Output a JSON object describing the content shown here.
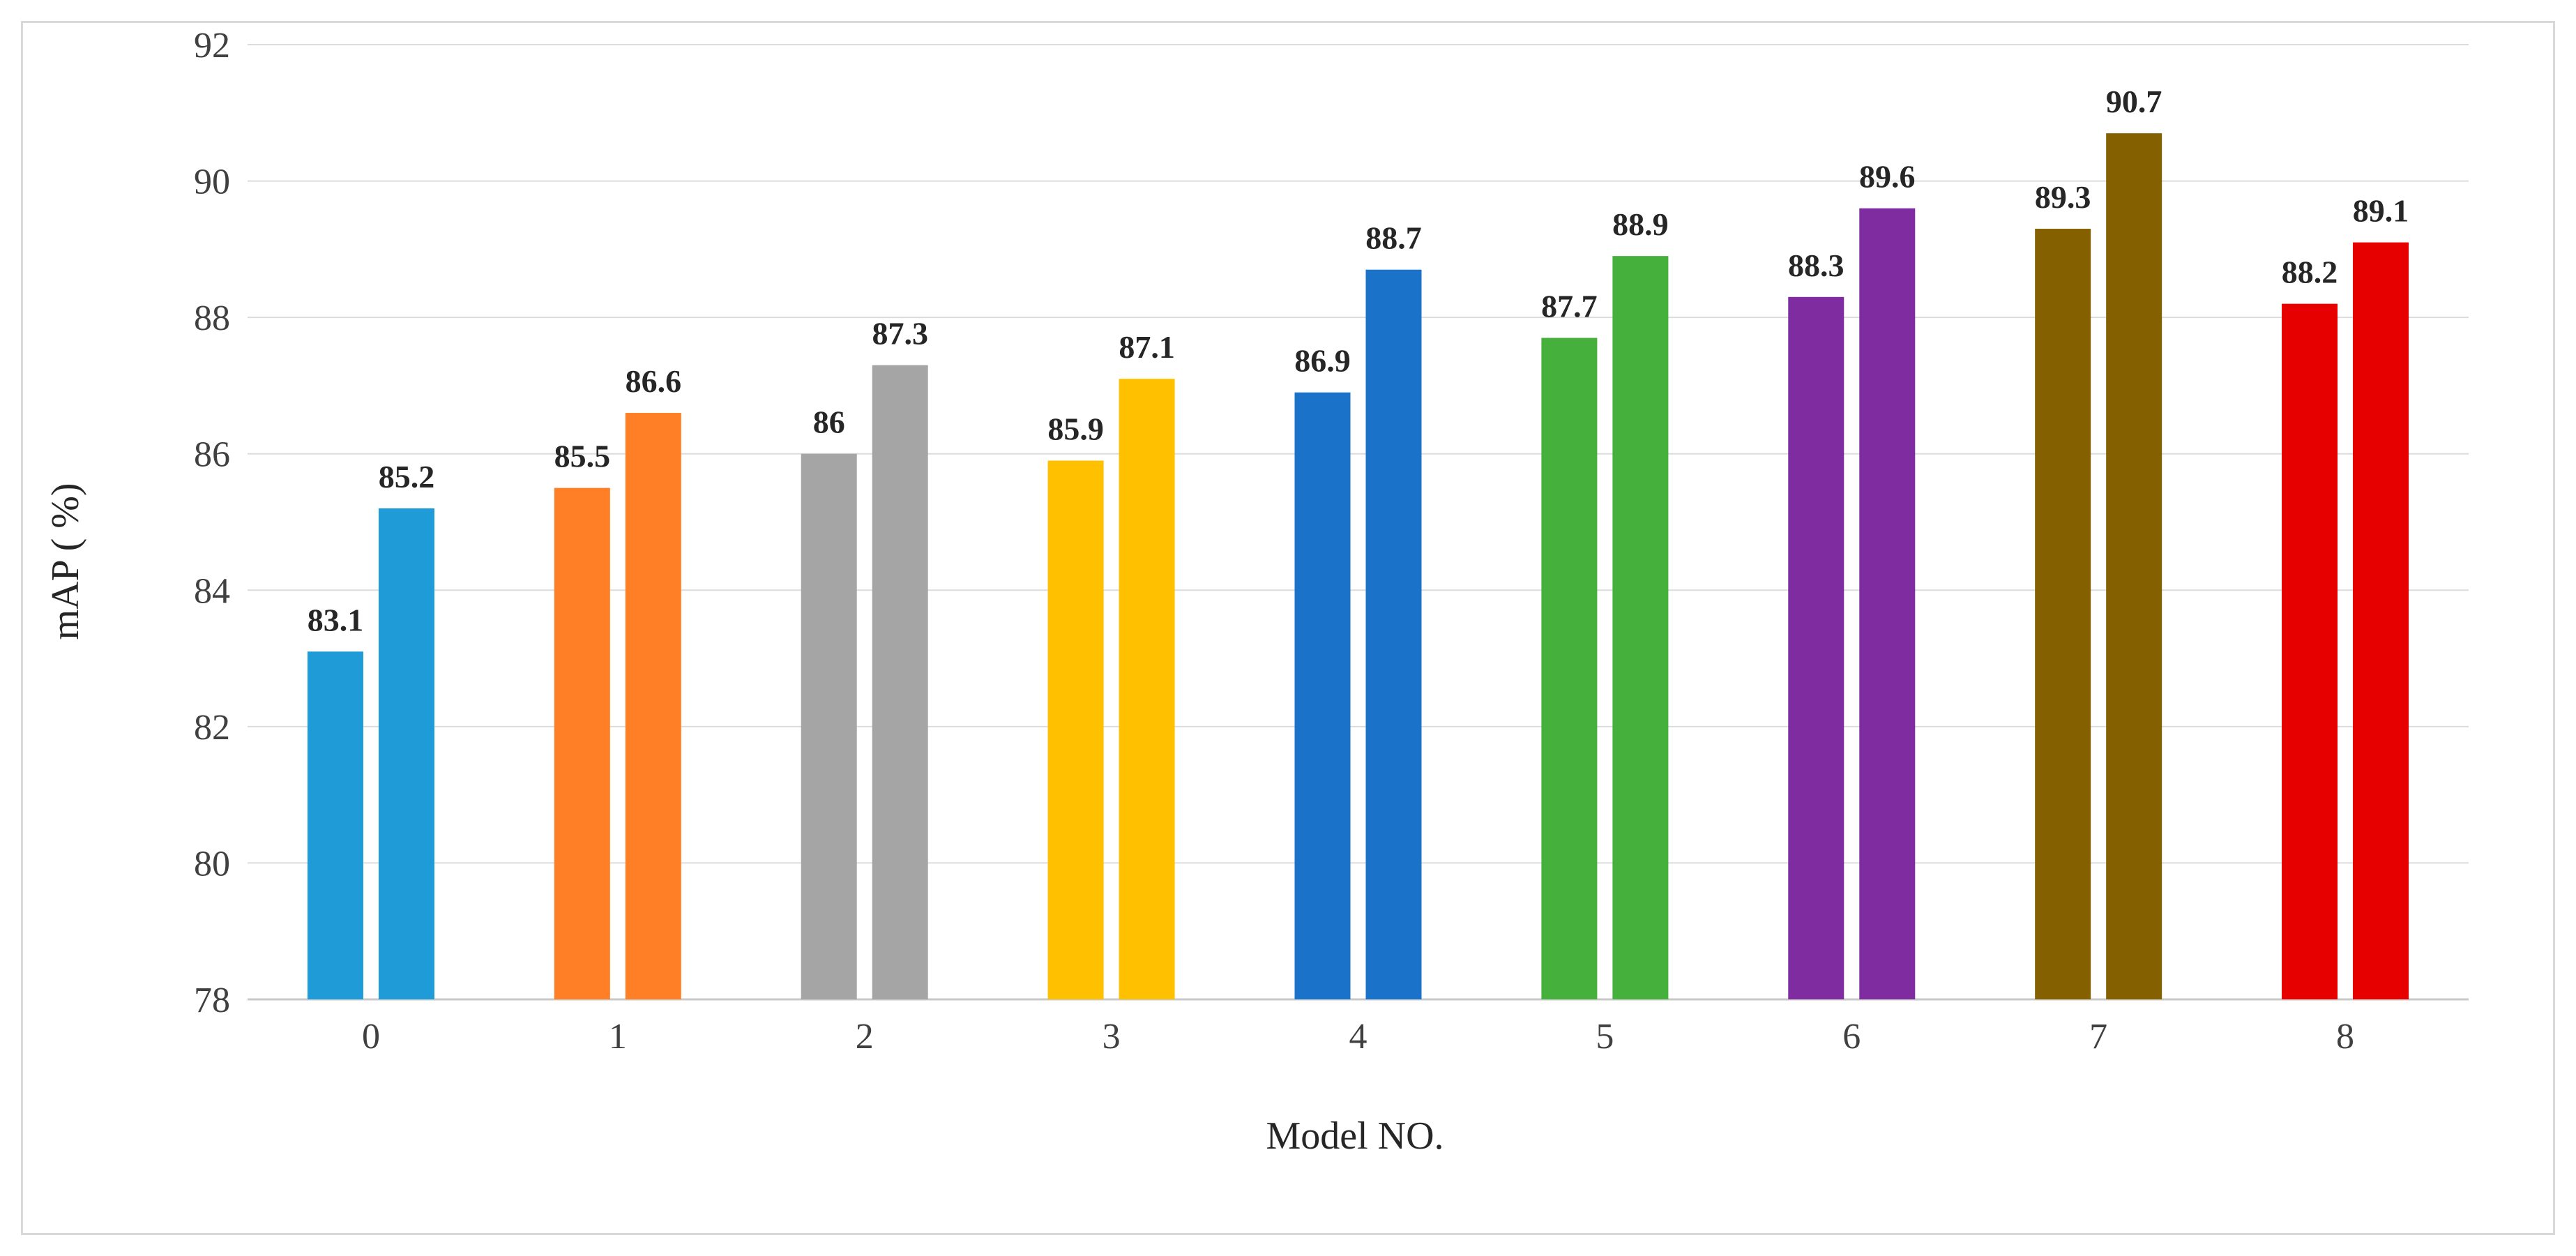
{
  "chart_data": {
    "type": "bar",
    "xlabel": "Model NO.",
    "ylabel": "mAP ( %)",
    "ylim": [
      78,
      92
    ],
    "yticks": [
      78,
      80,
      82,
      84,
      86,
      88,
      90,
      92
    ],
    "grid": true,
    "legend": "none",
    "categories": [
      "0",
      "1",
      "2",
      "3",
      "4",
      "5",
      "6",
      "7",
      "8"
    ],
    "series": [
      {
        "values": [
          83.1,
          85.5,
          86,
          85.9,
          86.9,
          87.7,
          88.3,
          89.3,
          88.2
        ]
      },
      {
        "values": [
          85.2,
          86.6,
          87.3,
          87.1,
          88.7,
          88.9,
          89.6,
          90.7,
          89.1
        ]
      }
    ],
    "bar_colors": [
      "#1F9BD7",
      "#FF7F27",
      "#A5A5A5",
      "#FFC000",
      "#1A73C8",
      "#46B03C",
      "#7E2CA0",
      "#846000",
      "#E60000"
    ],
    "data_labels": [
      [
        "83.1",
        "85.5",
        "86",
        "85.9",
        "86.9",
        "87.7",
        "88.3",
        "89.3",
        "88.2"
      ],
      [
        "85.2",
        "86.6",
        "87.3",
        "87.1",
        "88.7",
        "88.9",
        "89.6",
        "90.7",
        "89.1"
      ]
    ]
  }
}
